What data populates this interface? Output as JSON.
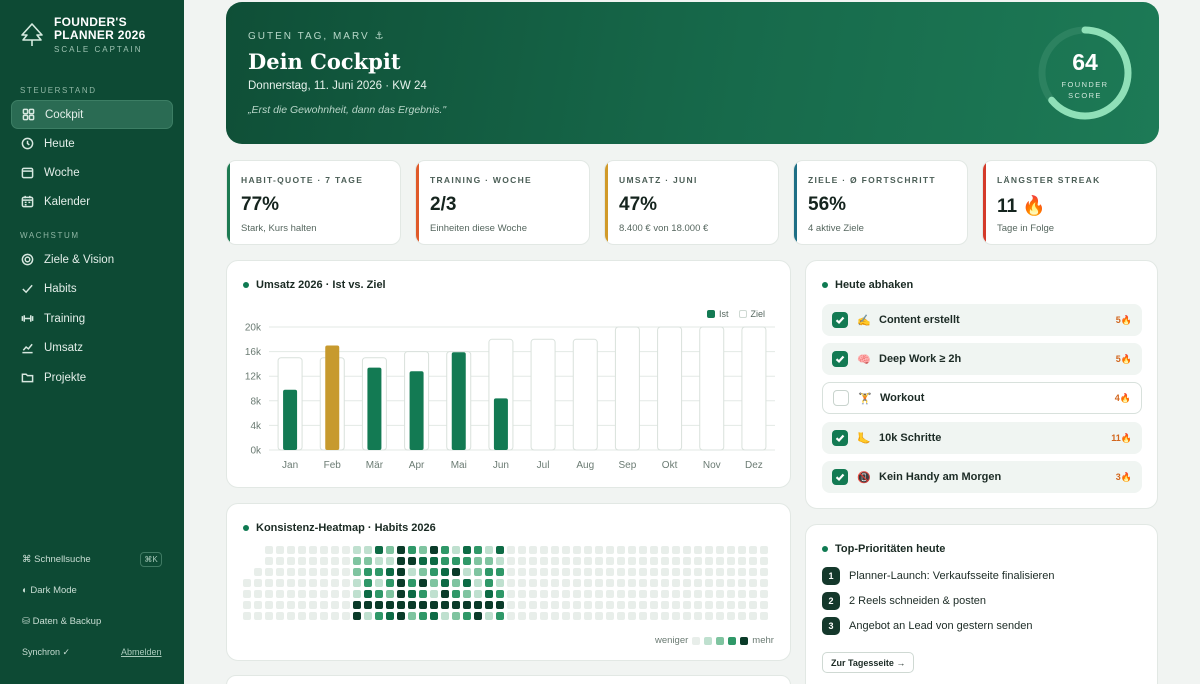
{
  "brand": {
    "title_line1": "FOUNDER'S",
    "title_line2": "PLANNER 2026",
    "subtitle": "SCALE CAPTAIN"
  },
  "sidebar": {
    "section1": "STEUERSTAND",
    "section2": "WACHSTUM",
    "items": [
      {
        "label": "Cockpit",
        "icon": "dashboard-icon"
      },
      {
        "label": "Heute",
        "icon": "clock-icon"
      },
      {
        "label": "Woche",
        "icon": "week-icon"
      },
      {
        "label": "Kalender",
        "icon": "calendar-icon"
      },
      {
        "label": "Ziele & Vision",
        "icon": "target-icon"
      },
      {
        "label": "Habits",
        "icon": "check-icon"
      },
      {
        "label": "Training",
        "icon": "dumbbell-icon"
      },
      {
        "label": "Umsatz",
        "icon": "trend-icon"
      },
      {
        "label": "Projekte",
        "icon": "folder-icon"
      }
    ],
    "search": "⌘ Schnellsuche",
    "search_kbd": "⌘K",
    "dark_mode": "◐ Dark Mode",
    "backup": "⛁ Daten & Backup",
    "sync": "Synchron ✓",
    "logout": "Abmelden"
  },
  "hero": {
    "greeting": "GUTEN TAG, MARV ⚓",
    "title": "Dein Cockpit",
    "date": "Donnerstag, 11. Juni 2026 · KW 24",
    "quote": "„Erst die Gewohnheit, dann das Ergebnis.\"",
    "score": "64",
    "score_label1": "FOUNDER",
    "score_label2": "SCORE",
    "score_fraction": 0.64
  },
  "kpis": [
    {
      "label": "HABIT-QUOTE · 7 TAGE",
      "value": "77%",
      "sub": "Stark, Kurs halten",
      "accent": "#1d7a52"
    },
    {
      "label": "TRAINING · WOCHE",
      "value": "2/3",
      "sub": "Einheiten diese Woche",
      "accent": "#e05a2a"
    },
    {
      "label": "UMSATZ · JUNI",
      "value": "47%",
      "sub": "8.400 € von 18.000 €",
      "accent": "#d19a2a"
    },
    {
      "label": "ZIELE · Ø FORTSCHRITT",
      "value": "56%",
      "sub": "4 aktive Ziele",
      "accent": "#1e6f86"
    },
    {
      "label": "LÄNGSTER STREAK",
      "value": "11 🔥",
      "sub": "Tage in Folge",
      "accent": "#d43a2a"
    }
  ],
  "chart_data": {
    "type": "bar",
    "title": "Umsatz 2026 · Ist vs. Ziel",
    "categories": [
      "Jan",
      "Feb",
      "Mär",
      "Apr",
      "Mai",
      "Jun",
      "Jul",
      "Aug",
      "Sep",
      "Okt",
      "Nov",
      "Dez"
    ],
    "series": [
      {
        "name": "Ist",
        "values": [
          9800,
          17000,
          13400,
          12800,
          15900,
          8400,
          null,
          null,
          null,
          null,
          null,
          null
        ],
        "color": "#137a53",
        "highlight_color": "#c79a2e",
        "highlight_index": 1
      },
      {
        "name": "Ziel",
        "values": [
          15000,
          15000,
          15000,
          16000,
          16000,
          18000,
          18000,
          18000,
          20000,
          20000,
          20000,
          20000
        ],
        "color": "#ffffff"
      }
    ],
    "yticks": [
      "20k",
      "16k",
      "12k",
      "8k",
      "4k",
      "0k"
    ],
    "ylim": [
      0,
      20000
    ],
    "legend_position": "top-right",
    "grid": true
  },
  "heatmap": {
    "title": "Konsistenz-Heatmap · Habits 2026",
    "legend_less": "weniger",
    "legend_more": "mehr",
    "levels": [
      "#e8eeea",
      "#bfe0cf",
      "#7fc4a0",
      "#2f9868",
      "#0d6b45",
      "#0a3b29"
    ]
  },
  "today": {
    "title": "Heute abhaken",
    "tasks": [
      {
        "label": "Content erstellt",
        "emoji": "✍️",
        "done": true,
        "streak": "5🔥"
      },
      {
        "label": "Deep Work ≥ 2h",
        "emoji": "🧠",
        "done": true,
        "streak": "5🔥"
      },
      {
        "label": "Workout",
        "emoji": "🏋️",
        "done": false,
        "streak": "4🔥"
      },
      {
        "label": "10k Schritte",
        "emoji": "🦶",
        "done": true,
        "streak": "11🔥"
      },
      {
        "label": "Kein Handy am Morgen",
        "emoji": "📵",
        "done": true,
        "streak": "3🔥"
      }
    ]
  },
  "priorities": {
    "title": "Top-Prioritäten heute",
    "items": [
      {
        "n": "1",
        "text": "Planner-Launch: Verkaufsseite finalisieren"
      },
      {
        "n": "2",
        "text": "2 Reels schneiden & posten"
      },
      {
        "n": "3",
        "text": "Angebot an Lead von gestern senden"
      }
    ],
    "button": "Zur Tagesseite →"
  }
}
